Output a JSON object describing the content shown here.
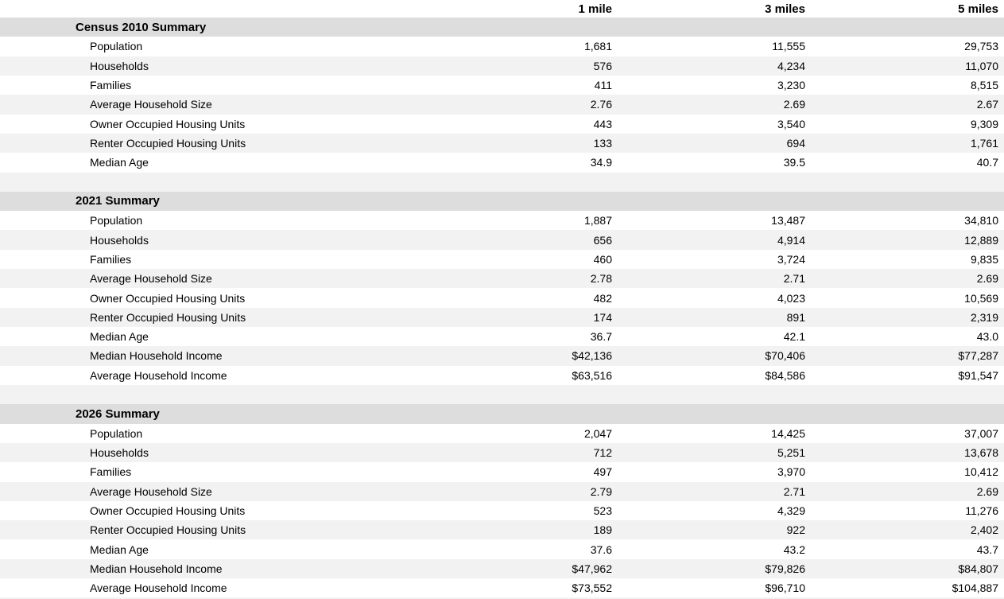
{
  "table": {
    "columns": [
      "1 mile",
      "3 miles",
      "5 miles"
    ],
    "sections": [
      {
        "title": "Census 2010 Summary",
        "rows": [
          {
            "label": "Population",
            "values": [
              "1,681",
              "11,555",
              "29,753"
            ]
          },
          {
            "label": "Households",
            "values": [
              "576",
              "4,234",
              "11,070"
            ]
          },
          {
            "label": "Families",
            "values": [
              "411",
              "3,230",
              "8,515"
            ]
          },
          {
            "label": "Average Household Size",
            "values": [
              "2.76",
              "2.69",
              "2.67"
            ]
          },
          {
            "label": "Owner Occupied Housing Units",
            "values": [
              "443",
              "3,540",
              "9,309"
            ]
          },
          {
            "label": "Renter Occupied Housing Units",
            "values": [
              "133",
              "694",
              "1,761"
            ]
          },
          {
            "label": "Median Age",
            "values": [
              "34.9",
              "39.5",
              "40.7"
            ]
          }
        ]
      },
      {
        "title": "2021 Summary",
        "rows": [
          {
            "label": "Population",
            "values": [
              "1,887",
              "13,487",
              "34,810"
            ]
          },
          {
            "label": "Households",
            "values": [
              "656",
              "4,914",
              "12,889"
            ]
          },
          {
            "label": "Families",
            "values": [
              "460",
              "3,724",
              "9,835"
            ]
          },
          {
            "label": "Average Household Size",
            "values": [
              "2.78",
              "2.71",
              "2.69"
            ]
          },
          {
            "label": "Owner Occupied Housing Units",
            "values": [
              "482",
              "4,023",
              "10,569"
            ]
          },
          {
            "label": "Renter Occupied Housing Units",
            "values": [
              "174",
              "891",
              "2,319"
            ]
          },
          {
            "label": "Median Age",
            "values": [
              "36.7",
              "42.1",
              "43.0"
            ]
          },
          {
            "label": "Median Household Income",
            "values": [
              "$42,136",
              "$70,406",
              "$77,287"
            ]
          },
          {
            "label": "Average Household Income",
            "values": [
              "$63,516",
              "$84,586",
              "$91,547"
            ]
          }
        ]
      },
      {
        "title": "2026 Summary",
        "rows": [
          {
            "label": "Population",
            "values": [
              "2,047",
              "14,425",
              "37,007"
            ]
          },
          {
            "label": "Households",
            "values": [
              "712",
              "5,251",
              "13,678"
            ]
          },
          {
            "label": "Families",
            "values": [
              "497",
              "3,970",
              "10,412"
            ]
          },
          {
            "label": "Average Household Size",
            "values": [
              "2.79",
              "2.71",
              "2.69"
            ]
          },
          {
            "label": "Owner Occupied Housing Units",
            "values": [
              "523",
              "4,329",
              "11,276"
            ]
          },
          {
            "label": "Renter Occupied Housing Units",
            "values": [
              "189",
              "922",
              "2,402"
            ]
          },
          {
            "label": "Median Age",
            "values": [
              "37.6",
              "43.2",
              "43.7"
            ]
          },
          {
            "label": "Median Household Income",
            "values": [
              "$47,962",
              "$79,826",
              "$84,807"
            ]
          },
          {
            "label": "Average Household Income",
            "values": [
              "$73,552",
              "$96,710",
              "$104,887"
            ]
          }
        ]
      }
    ]
  },
  "colors": {
    "section_band": "#dcdddc",
    "row_stripe": "#f2f2f2",
    "background": "#ffffff",
    "text": "#000000"
  },
  "chart_data": {
    "type": "table",
    "columns": [
      "1 mile",
      "3 miles",
      "5 miles"
    ],
    "sections": [
      {
        "title": "Census 2010 Summary",
        "rows": [
          {
            "label": "Population",
            "values": [
              1681,
              11555,
              29753
            ]
          },
          {
            "label": "Households",
            "values": [
              576,
              4234,
              11070
            ]
          },
          {
            "label": "Families",
            "values": [
              411,
              3230,
              8515
            ]
          },
          {
            "label": "Average Household Size",
            "values": [
              2.76,
              2.69,
              2.67
            ]
          },
          {
            "label": "Owner Occupied Housing Units",
            "values": [
              443,
              3540,
              9309
            ]
          },
          {
            "label": "Renter Occupied Housing Units",
            "values": [
              133,
              694,
              1761
            ]
          },
          {
            "label": "Median Age",
            "values": [
              34.9,
              39.5,
              40.7
            ]
          }
        ]
      },
      {
        "title": "2021 Summary",
        "rows": [
          {
            "label": "Population",
            "values": [
              1887,
              13487,
              34810
            ]
          },
          {
            "label": "Households",
            "values": [
              656,
              4914,
              12889
            ]
          },
          {
            "label": "Families",
            "values": [
              460,
              3724,
              9835
            ]
          },
          {
            "label": "Average Household Size",
            "values": [
              2.78,
              2.71,
              2.69
            ]
          },
          {
            "label": "Owner Occupied Housing Units",
            "values": [
              482,
              4023,
              10569
            ]
          },
          {
            "label": "Renter Occupied Housing Units",
            "values": [
              174,
              891,
              2319
            ]
          },
          {
            "label": "Median Age",
            "values": [
              36.7,
              42.1,
              43.0
            ]
          },
          {
            "label": "Median Household Income",
            "values": [
              42136,
              70406,
              77287
            ]
          },
          {
            "label": "Average Household Income",
            "values": [
              63516,
              84586,
              91547
            ]
          }
        ]
      },
      {
        "title": "2026 Summary",
        "rows": [
          {
            "label": "Population",
            "values": [
              2047,
              14425,
              37007
            ]
          },
          {
            "label": "Households",
            "values": [
              712,
              5251,
              13678
            ]
          },
          {
            "label": "Families",
            "values": [
              497,
              3970,
              10412
            ]
          },
          {
            "label": "Average Household Size",
            "values": [
              2.79,
              2.71,
              2.69
            ]
          },
          {
            "label": "Owner Occupied Housing Units",
            "values": [
              523,
              4329,
              11276
            ]
          },
          {
            "label": "Renter Occupied Housing Units",
            "values": [
              189,
              922,
              2402
            ]
          },
          {
            "label": "Median Age",
            "values": [
              37.6,
              43.2,
              43.7
            ]
          },
          {
            "label": "Median Household Income",
            "values": [
              47962,
              79826,
              84807
            ]
          },
          {
            "label": "Average Household Income",
            "values": [
              73552,
              96710,
              104887
            ]
          }
        ]
      }
    ]
  }
}
